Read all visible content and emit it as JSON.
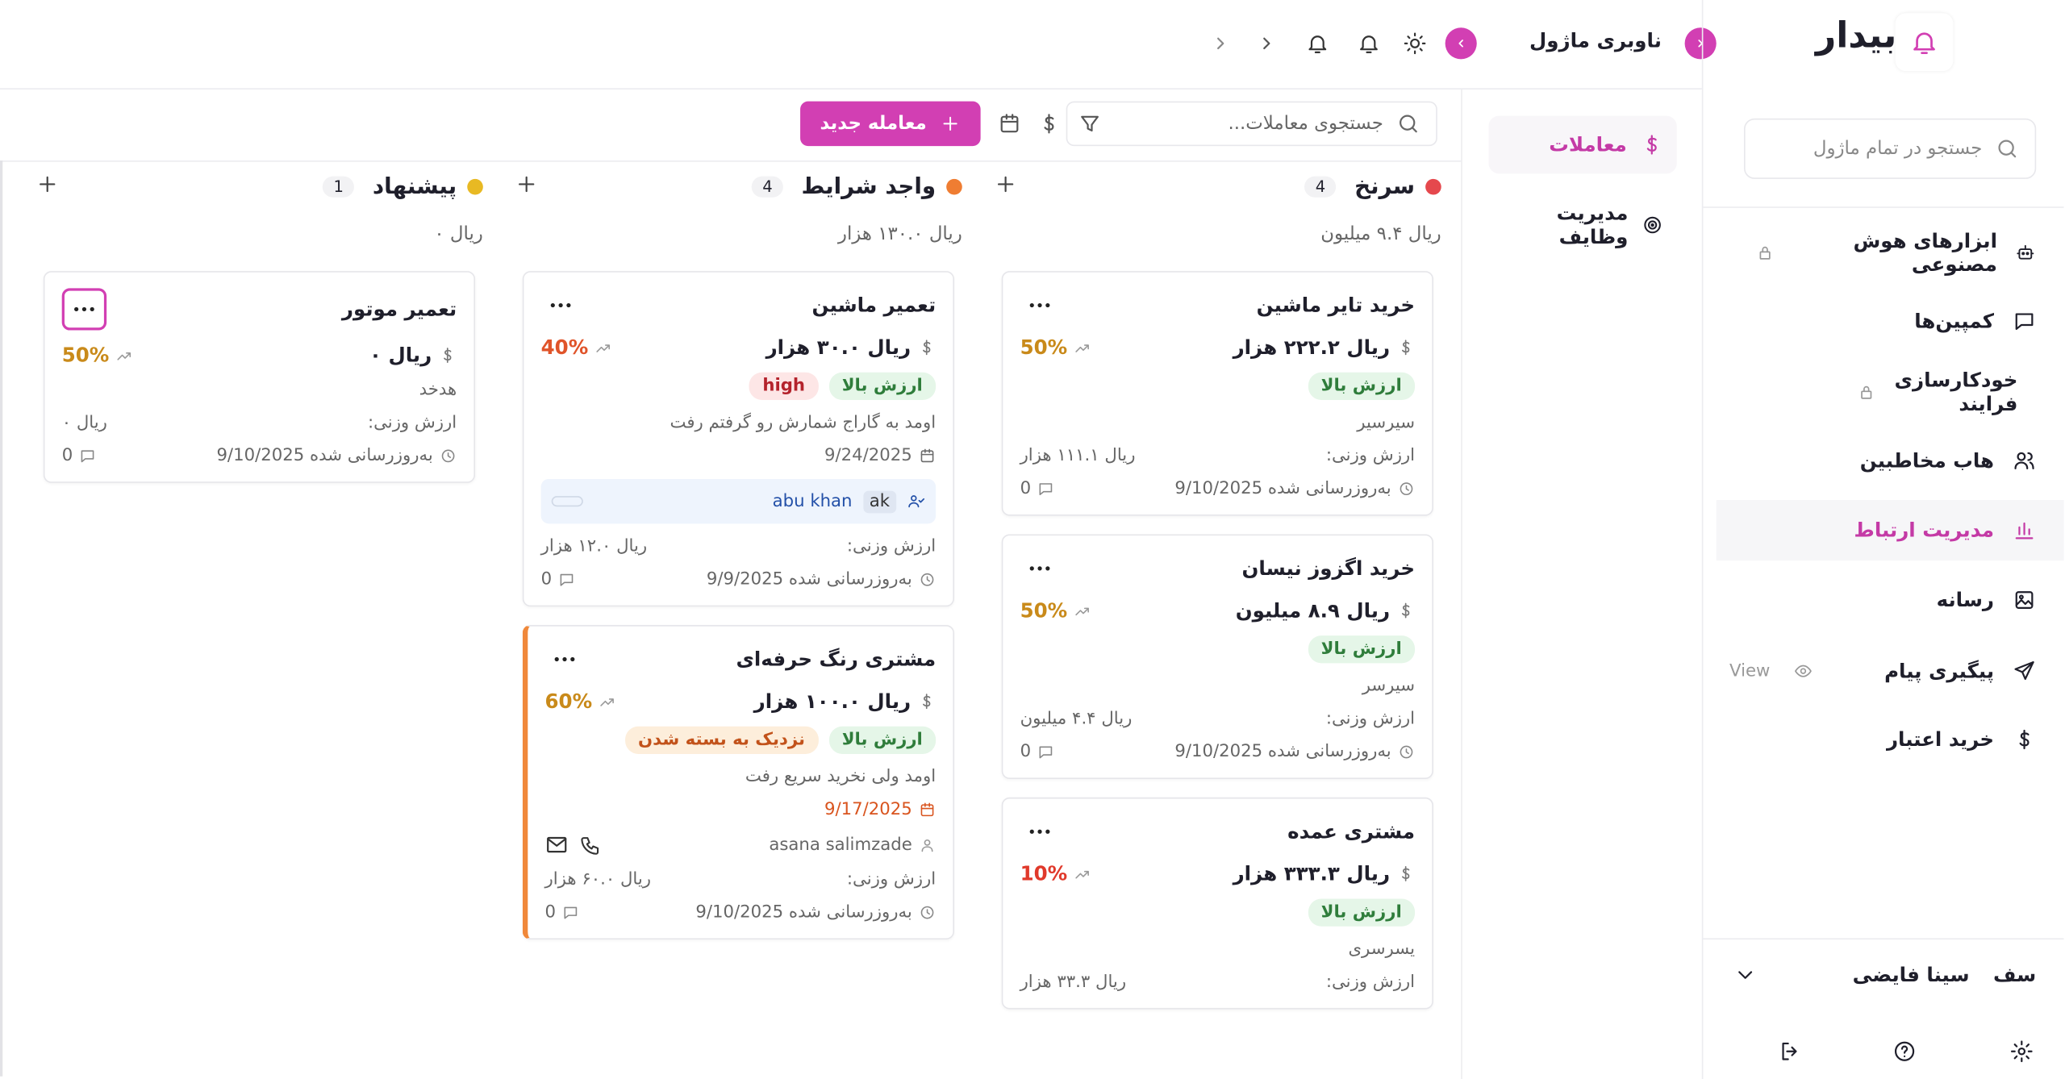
{
  "sidebar": {
    "brand": "بیدار",
    "search_placeholder": "جستجو در تمام ماژول",
    "nav": [
      {
        "label": "ابزارهای هوش مصنوعی"
      },
      {
        "label": "کمپین‌ها"
      },
      {
        "label": "خودکارسازی فرایند"
      },
      {
        "label": "هاب مخاطبین"
      },
      {
        "label": "مدیریت ارتباط"
      },
      {
        "label": "رسانه"
      },
      {
        "label": "پیگیری پیام",
        "extra": "View"
      },
      {
        "label": "خرید اعتبار"
      }
    ],
    "user": {
      "initials": "سف",
      "name": "سینا فایضی"
    }
  },
  "module_nav": {
    "title": "ناوبری ماژول",
    "items": [
      "معاملات",
      "مدیریت وظایف"
    ]
  },
  "toolbar": {
    "search_placeholder": "جستجوی معاملات...",
    "new_button": "معامله جدید"
  },
  "labels": {
    "weighted": "ارزش وزنی:"
  },
  "columns": [
    {
      "title": "سرنخ",
      "count": 4,
      "total": "ریال ۹.۴ میلیون",
      "color": "#e5484d",
      "cards": [
        {
          "title": "خرید تایر ماشین",
          "amount": "ریال ۲۲۲.۲ هزار",
          "prob": "50%",
          "prob_color": "#c98a1a",
          "tags": [
            {
              "text": "ارزش بالا",
              "color": "#2f7d3b",
              "bg": "#e5f6e8"
            }
          ],
          "contact": "سیرسیر",
          "weighted": "ریال ۱۱۱.۱ هزار",
          "updated": "به‌روزرسانی شده 9/10/2025",
          "comments": "0"
        },
        {
          "title": "خرید اگزوز نیسان",
          "amount": "ریال ۸.۹ میلیون",
          "prob": "50%",
          "prob_color": "#c98a1a",
          "tags": [
            {
              "text": "ارزش بالا",
              "color": "#2f7d3b",
              "bg": "#e5f6e8"
            }
          ],
          "contact": "سیرسر",
          "weighted": "ریال ۴.۴ میلیون",
          "updated": "به‌روزرسانی شده 9/10/2025",
          "comments": "0"
        },
        {
          "title": "مشتری عمده",
          "amount": "ریال ۳۳۳.۳ هزار",
          "prob": "10%",
          "prob_color": "#e0392b",
          "tags": [
            {
              "text": "ارزش بالا",
              "color": "#2f7d3b",
              "bg": "#e5f6e8"
            }
          ],
          "contact": "یسرسری",
          "weighted": "ریال ۳۳.۳ هزار"
        }
      ]
    },
    {
      "title": "واجد شرایط",
      "count": 4,
      "total": "ریال ۱۳۰.۰ هزار",
      "color": "#ef7d32",
      "cards": [
        {
          "title": "تعمیر ماشین",
          "amount": "ریال ۳۰.۰ هزار",
          "prob": "40%",
          "prob_color": "#e0542a",
          "tags": [
            {
              "text": "ارزش بالا",
              "color": "#2f7d3b",
              "bg": "#e5f6e8"
            },
            {
              "text": "high",
              "color": "#b4232c",
              "bg": "#fde6e6"
            }
          ],
          "note": "اومد به گاراج شمارش رو گرفتم رفت",
          "date": "9/24/2025",
          "date_color": "#6b6b6b",
          "assignee": {
            "initials": "ak",
            "name": "abu khan"
          },
          "weighted": "ریال ۱۲.۰ هزار",
          "updated": "به‌روزرسانی شده 9/9/2025",
          "comments": "0"
        },
        {
          "title": "مشتری رنگ حرفه‌ای",
          "amount": "ریال ۱۰۰.۰ هزار",
          "prob": "60%",
          "prob_color": "#c98a1a",
          "accent": "#f0883a",
          "tags": [
            {
              "text": "ارزش بالا",
              "color": "#2f7d3b",
              "bg": "#e5f6e8"
            },
            {
              "text": "نزدیک به بسته شدن",
              "color": "#c2521a",
              "bg": "#fdeedb"
            }
          ],
          "note": "اومد ولی نخرید سریع رفت",
          "date": "9/17/2025",
          "date_color": "#d9541e",
          "person": "asana salimzade",
          "weighted": "ریال ۶۰.۰ هزار",
          "updated": "به‌روزرسانی شده 9/10/2025",
          "comments": "0"
        }
      ]
    },
    {
      "title": "پیشنهاد",
      "count": 1,
      "total": "ریال ۰",
      "color": "#e8b923",
      "cards": [
        {
          "title": "تعمیر موتور",
          "amount": "ریال ۰",
          "prob": "50%",
          "prob_color": "#c98a1a",
          "contact": "هدخد",
          "weighted": "ریال ۰",
          "updated": "به‌روزرسانی شده 9/10/2025",
          "comments": "0"
        }
      ]
    }
  ]
}
